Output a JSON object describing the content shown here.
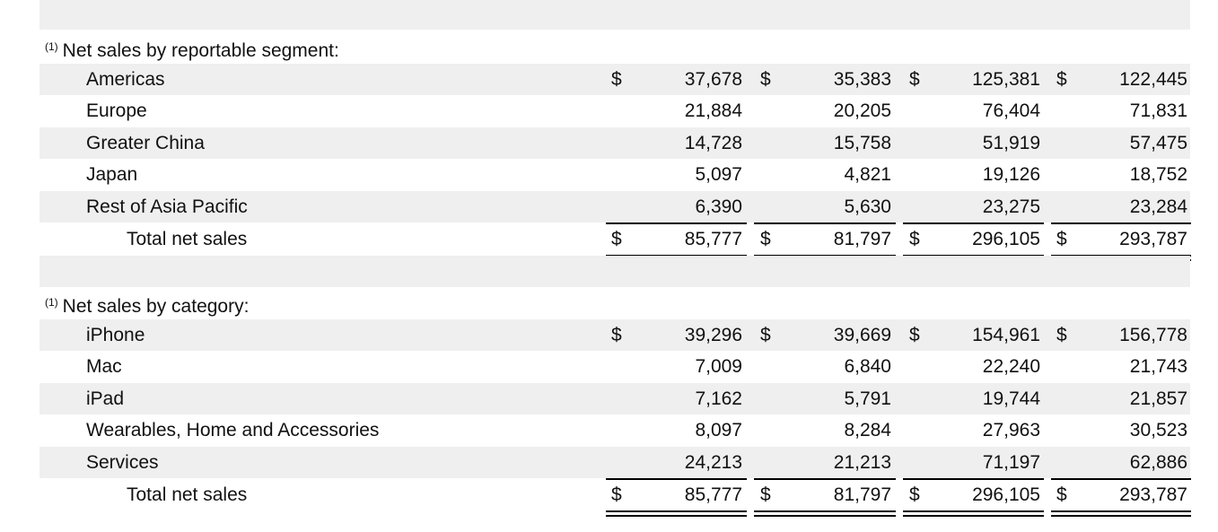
{
  "sections": [
    {
      "heading": "Net sales by reportable segment:",
      "footnote_marker": "(1)",
      "rows": [
        {
          "label": "Americas",
          "values": [
            "37,678",
            "35,383",
            "125,381",
            "122,445"
          ],
          "dollar": true
        },
        {
          "label": "Europe",
          "values": [
            "21,884",
            "20,205",
            "76,404",
            "71,831"
          ],
          "dollar": false
        },
        {
          "label": "Greater China",
          "values": [
            "14,728",
            "15,758",
            "51,919",
            "57,475"
          ],
          "dollar": false
        },
        {
          "label": "Japan",
          "values": [
            "5,097",
            "4,821",
            "19,126",
            "18,752"
          ],
          "dollar": false
        },
        {
          "label": "Rest of Asia Pacific",
          "values": [
            "6,390",
            "5,630",
            "23,275",
            "23,284"
          ],
          "dollar": false
        }
      ],
      "total": {
        "label": "Total net sales",
        "values": [
          "85,777",
          "81,797",
          "296,105",
          "293,787"
        ],
        "dollar": true
      }
    },
    {
      "heading": "Net sales by category:",
      "footnote_marker": "(1)",
      "rows": [
        {
          "label": "iPhone",
          "values": [
            "39,296",
            "39,669",
            "154,961",
            "156,778"
          ],
          "dollar": true
        },
        {
          "label": "Mac",
          "values": [
            "7,009",
            "6,840",
            "22,240",
            "21,743"
          ],
          "dollar": false
        },
        {
          "label": "iPad",
          "values": [
            "7,162",
            "5,791",
            "19,744",
            "21,857"
          ],
          "dollar": false
        },
        {
          "label": "Wearables, Home and Accessories",
          "values": [
            "8,097",
            "8,284",
            "27,963",
            "30,523"
          ],
          "dollar": false
        },
        {
          "label": "Services",
          "values": [
            "24,213",
            "21,213",
            "71,197",
            "62,886"
          ],
          "dollar": false
        }
      ],
      "total": {
        "label": "Total net sales",
        "values": [
          "85,777",
          "81,797",
          "296,105",
          "293,787"
        ],
        "dollar": true
      }
    }
  ],
  "currency_symbol": "$"
}
